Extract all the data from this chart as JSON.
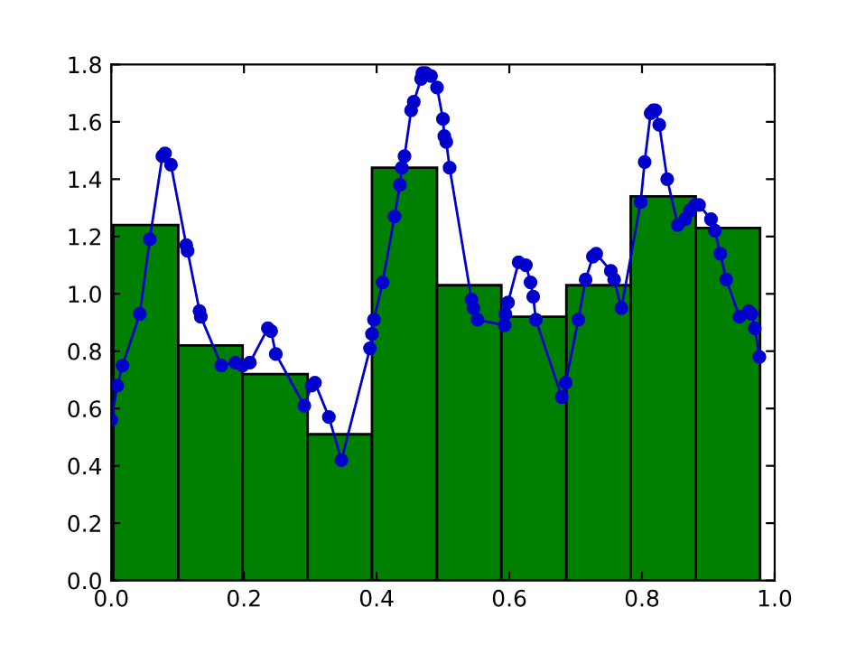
{
  "chart_data": {
    "type": "histogram",
    "series": [
      {
        "color": "#008000",
        "bins": [
          0.003,
          0.101,
          0.198,
          0.296,
          0.393,
          0.491,
          0.588,
          0.686,
          0.783,
          0.881,
          0.978
        ],
        "values": [
          1.24,
          0.82,
          0.72,
          0.51,
          1.44,
          1.03,
          0.92,
          1.03,
          1.34,
          1.23
        ]
      },
      {
        "type": "line",
        "color": "#0000cc",
        "marker": "circle",
        "x": [
          0.0,
          0.009,
          0.017,
          0.043,
          0.058,
          0.077,
          0.081,
          0.09,
          0.113,
          0.115,
          0.133,
          0.135,
          0.166,
          0.187,
          0.198,
          0.209,
          0.236,
          0.241,
          0.248,
          0.291,
          0.302,
          0.307,
          0.328,
          0.347,
          0.39,
          0.393,
          0.396,
          0.409,
          0.427,
          0.435,
          0.438,
          0.442,
          0.452,
          0.456,
          0.467,
          0.469,
          0.474,
          0.482,
          0.491,
          0.5,
          0.502,
          0.505,
          0.51,
          0.543,
          0.546,
          0.552,
          0.593,
          0.594,
          0.598,
          0.614,
          0.625,
          0.632,
          0.636,
          0.64,
          0.679,
          0.685,
          0.704,
          0.715,
          0.726,
          0.731,
          0.753,
          0.758,
          0.769,
          0.798,
          0.804,
          0.813,
          0.817,
          0.82,
          0.826,
          0.838,
          0.854,
          0.865,
          0.872,
          0.88,
          0.886,
          0.904,
          0.91,
          0.918,
          0.927,
          0.947,
          0.961,
          0.965,
          0.97,
          0.977
        ],
        "values": [
          0.56,
          0.68,
          0.75,
          0.93,
          1.19,
          1.48,
          1.49,
          1.45,
          1.17,
          1.15,
          0.94,
          0.92,
          0.75,
          0.76,
          0.75,
          0.76,
          0.88,
          0.87,
          0.79,
          0.61,
          0.68,
          0.69,
          0.57,
          0.42,
          0.81,
          0.86,
          0.91,
          1.04,
          1.27,
          1.38,
          1.44,
          1.48,
          1.64,
          1.67,
          1.75,
          1.77,
          1.77,
          1.76,
          1.72,
          1.61,
          1.55,
          1.53,
          1.44,
          0.98,
          0.95,
          0.91,
          0.89,
          0.93,
          0.97,
          1.11,
          1.1,
          1.04,
          0.99,
          0.91,
          0.64,
          0.69,
          0.91,
          1.05,
          1.13,
          1.14,
          1.08,
          1.05,
          0.95,
          1.32,
          1.46,
          1.63,
          1.64,
          1.64,
          1.59,
          1.4,
          1.24,
          1.26,
          1.29,
          1.31,
          1.31,
          1.26,
          1.22,
          1.14,
          1.05,
          0.92,
          0.94,
          0.93,
          0.88,
          0.78
        ]
      }
    ],
    "xlim": [
      0,
      1
    ],
    "ylim": [
      0,
      1.8
    ],
    "xticks": [
      {
        "value": 0,
        "label": "0.0"
      },
      0.2,
      0.4,
      0.6,
      0.8,
      {
        "value": 1,
        "label": "1.0"
      }
    ],
    "yticks": [
      {
        "value": 0,
        "label": "0.0"
      },
      0.2,
      0.4,
      0.6,
      0.8,
      {
        "value": 1,
        "label": "1.0"
      },
      1.2,
      1.4,
      1.6,
      1.8
    ]
  }
}
